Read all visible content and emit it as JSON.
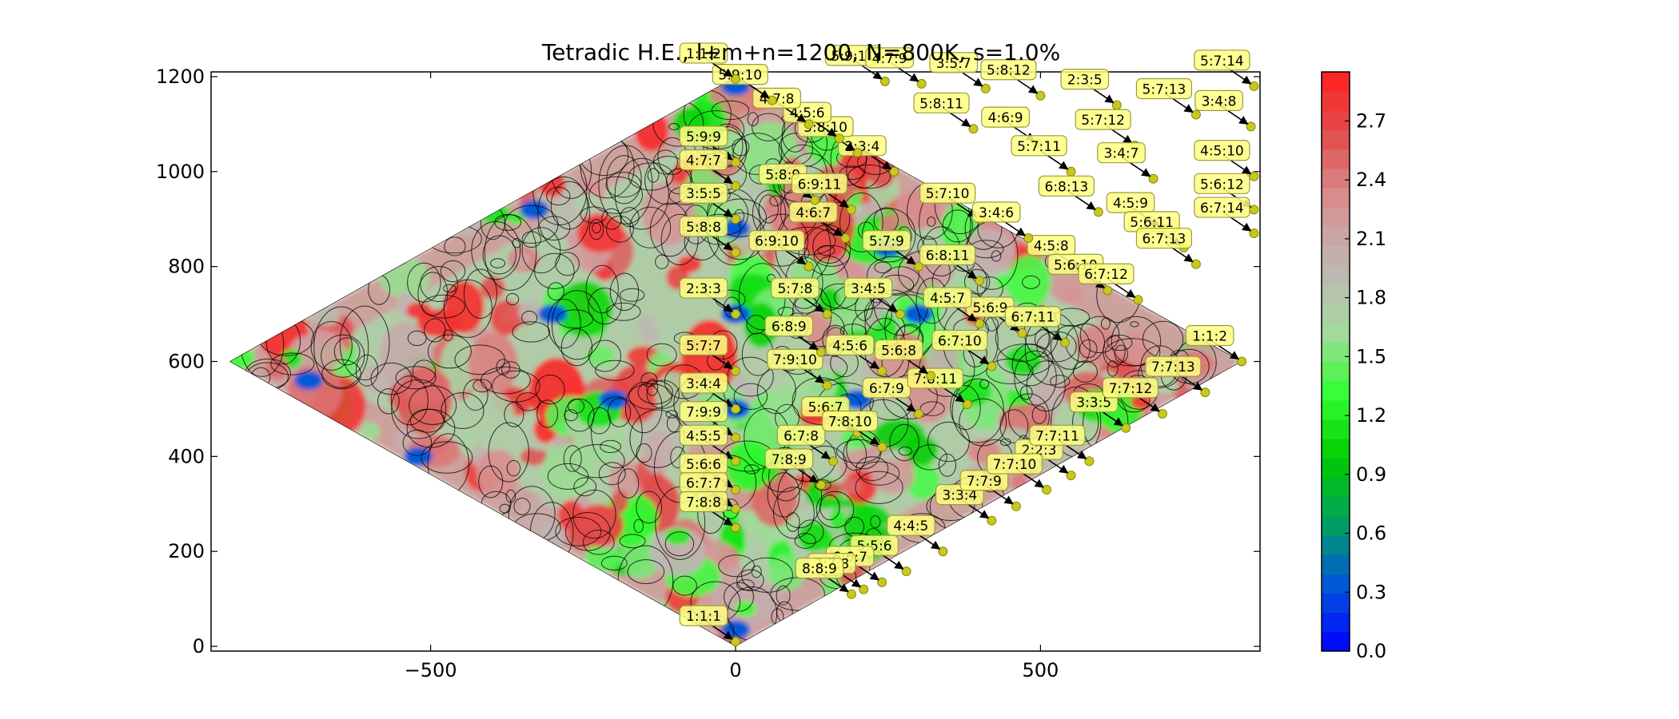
{
  "chart_data": {
    "type": "heatmap",
    "title": "Tetradic H.E., l+m+n=1200, N=800K, s=1.0%",
    "xlabel": "",
    "ylabel": "",
    "xlim": [
      -860,
      860
    ],
    "ylim": [
      -10,
      1210
    ],
    "x_ticks": [
      -500,
      0,
      500
    ],
    "y_ticks": [
      0,
      200,
      400,
      600,
      800,
      1000,
      1200
    ],
    "grid": false,
    "domain_shape": "rhombus",
    "domain_vertices": [
      [
        0,
        0
      ],
      [
        830,
        600
      ],
      [
        0,
        1200
      ],
      [
        -830,
        600
      ]
    ],
    "colorbar": {
      "min": 0.0,
      "max": 2.95,
      "ticks": [
        "0.0",
        "0.3",
        "0.6",
        "0.9",
        "1.2",
        "1.5",
        "1.8",
        "2.1",
        "2.4",
        "2.7"
      ],
      "tick_values": [
        0.0,
        0.3,
        0.6,
        0.9,
        1.2,
        1.5,
        1.8,
        2.1,
        2.4,
        2.7
      ],
      "colormap": "blue-green-gray-red",
      "colors": [
        "#0000ff",
        "#0055dd",
        "#00a060",
        "#00cc00",
        "#33ff33",
        "#a8d8a0",
        "#c0b4b4",
        "#d89090",
        "#e05050",
        "#ff2020"
      ]
    },
    "annotations": [
      {
        "label": "1:1:1",
        "x": 0,
        "y": 10
      },
      {
        "label": "1:1:2",
        "x": 830,
        "y": 600
      },
      {
        "label": "2:2:3",
        "x": 550,
        "y": 360
      },
      {
        "label": "3:3:4",
        "x": 420,
        "y": 265
      },
      {
        "label": "3:3:5",
        "x": 640,
        "y": 460
      },
      {
        "label": "4:4:5",
        "x": 340,
        "y": 200
      },
      {
        "label": "5:5:6",
        "x": 280,
        "y": 158
      },
      {
        "label": "6:6:7",
        "x": 240,
        "y": 135
      },
      {
        "label": "7:7:8",
        "x": 210,
        "y": 120
      },
      {
        "label": "8:8:9",
        "x": 190,
        "y": 110
      },
      {
        "label": "7:7:9",
        "x": 460,
        "y": 295
      },
      {
        "label": "7:7:10",
        "x": 510,
        "y": 330
      },
      {
        "label": "7:7:11",
        "x": 580,
        "y": 390
      },
      {
        "label": "7:7:12",
        "x": 700,
        "y": 490
      },
      {
        "label": "7:7:13",
        "x": 770,
        "y": 535
      },
      {
        "label": "6:7:8",
        "x": 160,
        "y": 390
      },
      {
        "label": "7:8:9",
        "x": 140,
        "y": 340
      },
      {
        "label": "5:6:7",
        "x": 200,
        "y": 450
      },
      {
        "label": "6:7:9",
        "x": 300,
        "y": 490
      },
      {
        "label": "7:8:10",
        "x": 240,
        "y": 420
      },
      {
        "label": "7:8:11",
        "x": 380,
        "y": 510
      },
      {
        "label": "7:9:10",
        "x": 150,
        "y": 550
      },
      {
        "label": "4:5:6",
        "x": 240,
        "y": 580
      },
      {
        "label": "5:6:8",
        "x": 320,
        "y": 570
      },
      {
        "label": "6:7:10",
        "x": 420,
        "y": 590
      },
      {
        "label": "6:8:9",
        "x": 140,
        "y": 620
      },
      {
        "label": "5:6:9",
        "x": 470,
        "y": 660
      },
      {
        "label": "6:7:11",
        "x": 540,
        "y": 640
      },
      {
        "label": "4:5:7",
        "x": 400,
        "y": 680
      },
      {
        "label": "3:4:5",
        "x": 270,
        "y": 700
      },
      {
        "label": "5:7:8",
        "x": 150,
        "y": 700
      },
      {
        "label": "6:9:10",
        "x": 120,
        "y": 800
      },
      {
        "label": "4:6:7",
        "x": 180,
        "y": 860
      },
      {
        "label": "5:7:9",
        "x": 300,
        "y": 800
      },
      {
        "label": "6:8:11",
        "x": 400,
        "y": 770
      },
      {
        "label": "4:5:8",
        "x": 570,
        "y": 790
      },
      {
        "label": "5:6:10",
        "x": 610,
        "y": 750
      },
      {
        "label": "6:7:12",
        "x": 660,
        "y": 730
      },
      {
        "label": "5:8:9",
        "x": 130,
        "y": 940
      },
      {
        "label": "6:9:11",
        "x": 190,
        "y": 920
      },
      {
        "label": "5:7:10",
        "x": 400,
        "y": 900
      },
      {
        "label": "3:4:6",
        "x": 480,
        "y": 860
      },
      {
        "label": "2:3:4",
        "x": 260,
        "y": 1000
      },
      {
        "label": "5:8:10",
        "x": 200,
        "y": 1040
      },
      {
        "label": "4:5:6",
        "x": 170,
        "y": 1070
      },
      {
        "label": "4:7:8",
        "x": 120,
        "y": 1100
      },
      {
        "label": "5:9:10",
        "x": 60,
        "y": 1150
      },
      {
        "label": "1:1:2",
        "x": 0,
        "y": 1195
      },
      {
        "label": "5:9:9",
        "x": 0,
        "y": 1020
      },
      {
        "label": "4:7:7",
        "x": 0,
        "y": 970
      },
      {
        "label": "3:5:5",
        "x": 0,
        "y": 900
      },
      {
        "label": "5:8:8",
        "x": 0,
        "y": 830
      },
      {
        "label": "2:3:3",
        "x": 0,
        "y": 700
      },
      {
        "label": "5:7:7",
        "x": 0,
        "y": 580
      },
      {
        "label": "3:4:4",
        "x": 0,
        "y": 500
      },
      {
        "label": "7:9:9",
        "x": 0,
        "y": 440
      },
      {
        "label": "4:5:5",
        "x": 0,
        "y": 390
      },
      {
        "label": "5:6:6",
        "x": 0,
        "y": 330
      },
      {
        "label": "6:7:7",
        "x": 0,
        "y": 290
      },
      {
        "label": "7:8:8",
        "x": 0,
        "y": 250
      },
      {
        "label": "5:9:11",
        "x": 245,
        "y": 1190
      },
      {
        "label": "4:7:9",
        "x": 305,
        "y": 1185
      },
      {
        "label": "3:5:7",
        "x": 410,
        "y": 1175
      },
      {
        "label": "5:8:12",
        "x": 500,
        "y": 1160
      },
      {
        "label": "2:3:5",
        "x": 625,
        "y": 1140
      },
      {
        "label": "5:7:14",
        "x": 850,
        "y": 1180
      },
      {
        "label": "5:7:13",
        "x": 755,
        "y": 1120
      },
      {
        "label": "3:4:8",
        "x": 845,
        "y": 1095
      },
      {
        "label": "5:8:11",
        "x": 390,
        "y": 1090
      },
      {
        "label": "4:6:9",
        "x": 495,
        "y": 1060
      },
      {
        "label": "5:7:12",
        "x": 655,
        "y": 1055
      },
      {
        "label": "5:7:11",
        "x": 550,
        "y": 1000
      },
      {
        "label": "3:4:7",
        "x": 685,
        "y": 985
      },
      {
        "label": "4:5:10",
        "x": 850,
        "y": 990
      },
      {
        "label": "6:8:13",
        "x": 595,
        "y": 915
      },
      {
        "label": "4:5:9",
        "x": 700,
        "y": 880
      },
      {
        "label": "5:6:12",
        "x": 850,
        "y": 920
      },
      {
        "label": "5:6:11",
        "x": 735,
        "y": 840
      },
      {
        "label": "6:7:14",
        "x": 850,
        "y": 870
      },
      {
        "label": "6:7:13",
        "x": 755,
        "y": 805
      }
    ]
  }
}
